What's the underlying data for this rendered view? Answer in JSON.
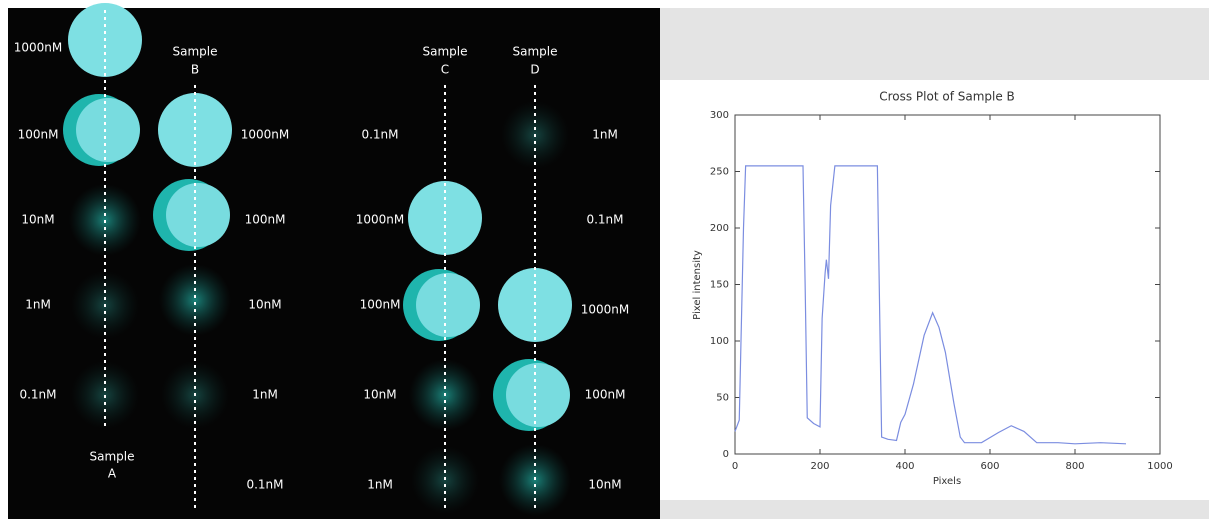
{
  "image_panel": {
    "samples": [
      {
        "word": "Sample",
        "letter": "A",
        "concentrations": [
          "1000nM",
          "100nM",
          "10nM",
          "1nM",
          "0.1nM"
        ]
      },
      {
        "word": "Sample",
        "letter": "B",
        "concentrations": [
          "1000nM",
          "100nM",
          "10nM",
          "1nM",
          "0.1nM"
        ]
      },
      {
        "word": "Sample",
        "letter": "C",
        "concentrations": [
          "0.1nM",
          "1000nM",
          "100nM",
          "10nM",
          "1nM"
        ]
      },
      {
        "word": "Sample",
        "letter": "D",
        "concentrations": [
          "1nM",
          "0.1nM",
          "1000nM",
          "100nM",
          "10nM"
        ]
      }
    ]
  },
  "chart_data": {
    "type": "line",
    "title": "Cross Plot of Sample B",
    "x_label": "Pixels",
    "y_label": "Pixel intensity",
    "x": [
      0,
      10,
      20,
      25,
      40,
      100,
      160,
      165,
      170,
      185,
      200,
      205,
      212,
      215,
      218,
      220,
      225,
      235,
      280,
      330,
      335,
      345,
      360,
      380,
      390,
      400,
      420,
      445,
      465,
      480,
      495,
      515,
      530,
      540,
      580,
      620,
      650,
      680,
      710,
      760,
      800,
      860,
      920
    ],
    "values": [
      20,
      30,
      200,
      255,
      255,
      255,
      255,
      150,
      32,
      27,
      24,
      120,
      160,
      172,
      162,
      155,
      220,
      255,
      255,
      255,
      255,
      15,
      13,
      12,
      28,
      35,
      62,
      105,
      125,
      112,
      90,
      45,
      15,
      10,
      10,
      19,
      25,
      20,
      10,
      10,
      9,
      10,
      9
    ],
    "color": "#7b8de0",
    "xlim": [
      0,
      1000
    ],
    "xticks": [
      0,
      200,
      400,
      600,
      800,
      1000
    ],
    "ylim": [
      0,
      300
    ],
    "yticks": [
      0,
      50,
      100,
      150,
      200,
      250,
      300
    ]
  }
}
